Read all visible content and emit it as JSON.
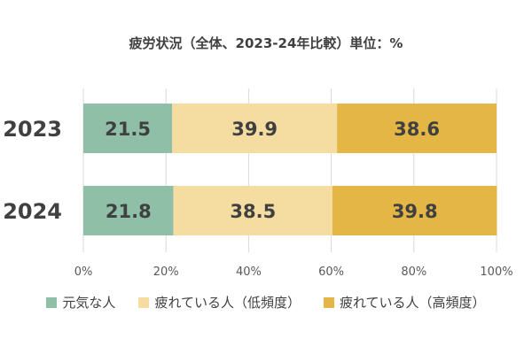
{
  "chart_data": {
    "type": "bar",
    "orientation": "horizontal",
    "stacked": true,
    "title": "疲労状況（全体、2023-24年比較）単位：%",
    "categories": [
      "2023",
      "2024"
    ],
    "series": [
      {
        "name": "元気な人",
        "values": [
          21.5,
          21.8
        ],
        "color": "#8fbfa7"
      },
      {
        "name": "疲れている人（低頻度）",
        "values": [
          39.9,
          38.5
        ],
        "color": "#f5dca0"
      },
      {
        "name": "疲れている人（高頻度）",
        "values": [
          38.6,
          39.8
        ],
        "color": "#e3b646"
      }
    ],
    "xlim": [
      0,
      100
    ],
    "xticks": [
      "0%",
      "20%",
      "40%",
      "60%",
      "80%",
      "100%"
    ],
    "grid": true,
    "legend": "bottom"
  }
}
